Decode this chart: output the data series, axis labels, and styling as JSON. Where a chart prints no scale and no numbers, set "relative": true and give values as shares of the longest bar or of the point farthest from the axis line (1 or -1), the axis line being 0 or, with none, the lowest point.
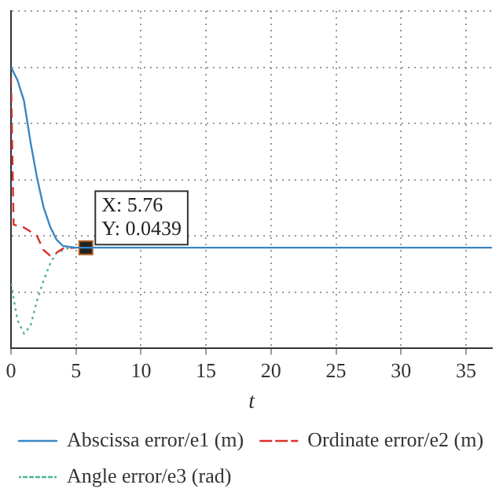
{
  "chart_data": {
    "type": "line",
    "relative": true,
    "xlabel": "t",
    "xlim": [
      0,
      37
    ],
    "xticks": [
      0,
      5,
      10,
      15,
      20,
      25,
      30,
      35
    ],
    "grid": true,
    "legend": "bottom left",
    "marker": "none",
    "annotations": [
      {
        "text": "X: 5.76\nY: 0.0439",
        "x": 5.76,
        "y": 0.358
      }
    ],
    "series": [
      {
        "name": "Abscissa error/e1 (m)",
        "color": "#3a86c4",
        "line_style": "solid",
        "x": [
          0,
          0.5,
          1,
          1.5,
          2,
          2.5,
          3,
          3.5,
          4,
          5,
          10,
          20,
          30,
          37
        ],
        "values": [
          1,
          0.954,
          0.88,
          0.734,
          0.607,
          0.503,
          0.434,
          0.387,
          0.364,
          0.358,
          0.358,
          0.358,
          0.358,
          0.358
        ]
      },
      {
        "name": "Ordinate error/e2 (m)",
        "color": "#d9302c",
        "line_style": "dashed",
        "x": [
          0,
          0.2,
          1,
          2,
          2.5,
          3,
          3.5,
          4,
          5
        ],
        "values": [
          0.965,
          0.44,
          0.43,
          0.4,
          0.35,
          0.33,
          0.34,
          0.355,
          0.358
        ]
      },
      {
        "name": "Angle error/e3 (rad)",
        "color": "#4db38a",
        "line_style": "dotted",
        "x": [
          0,
          0.5,
          1,
          1.5,
          2,
          2.5,
          3,
          3.5,
          4.5
        ],
        "values": [
          0.23,
          0.1,
          0.052,
          0.08,
          0.17,
          0.24,
          0.3,
          0.34,
          0.358
        ]
      },
      {
        "type": "scatter",
        "marker": "square",
        "color": "#222222",
        "x": [
          5.76
        ],
        "values": [
          0.358
        ]
      }
    ]
  }
}
